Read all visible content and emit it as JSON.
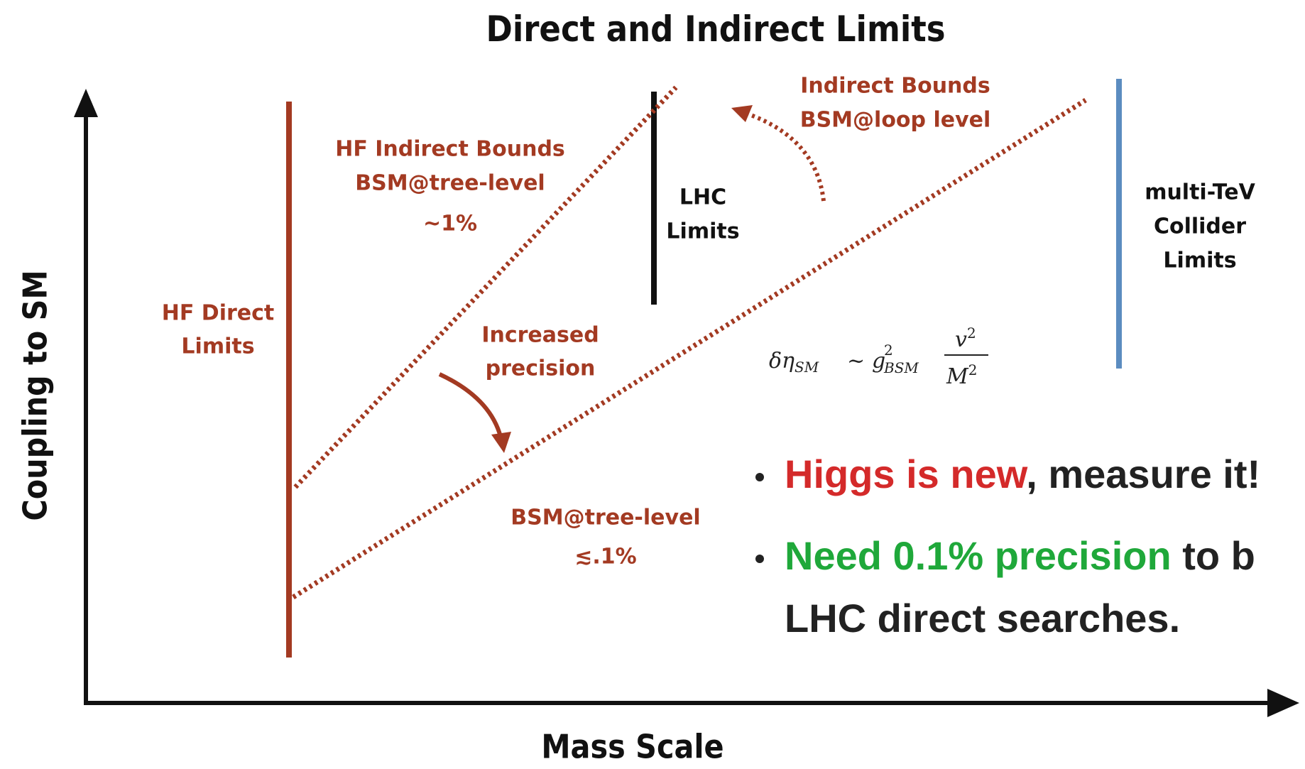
{
  "title": "Direct and Indirect Limits",
  "axes": {
    "y_label": "Coupling to SM",
    "x_label": "Mass Scale"
  },
  "labels": {
    "hf_indirect": [
      "HF Indirect Bounds",
      "BSM@tree-level",
      "~1%"
    ],
    "indirect_loop": [
      "Indirect Bounds",
      "BSM@loop level"
    ],
    "lhc": [
      "LHC",
      "Limits"
    ],
    "multi_tev": [
      "multi-TeV",
      "Collider",
      "Limits"
    ],
    "hf_direct": [
      "HF Direct",
      "Limits"
    ],
    "increased": [
      "Increased",
      "precision"
    ],
    "tree_low": [
      "BSM@tree-level",
      "≲.1%"
    ]
  },
  "formula": {
    "lhs": "δη",
    "lhs_sub": "SM",
    "rel": "~",
    "g": "g",
    "g_sup": "2",
    "g_sub": "BSM",
    "num": "v",
    "num_sup": "2",
    "den": "M",
    "den_sup": "2"
  },
  "bullets": [
    {
      "highlight": "Higgs is new",
      "rest": ", measure it!"
    },
    {
      "highlight": "Need 0.1% precision",
      "rest": " to b",
      "line2": "LHC direct searches."
    }
  ]
}
